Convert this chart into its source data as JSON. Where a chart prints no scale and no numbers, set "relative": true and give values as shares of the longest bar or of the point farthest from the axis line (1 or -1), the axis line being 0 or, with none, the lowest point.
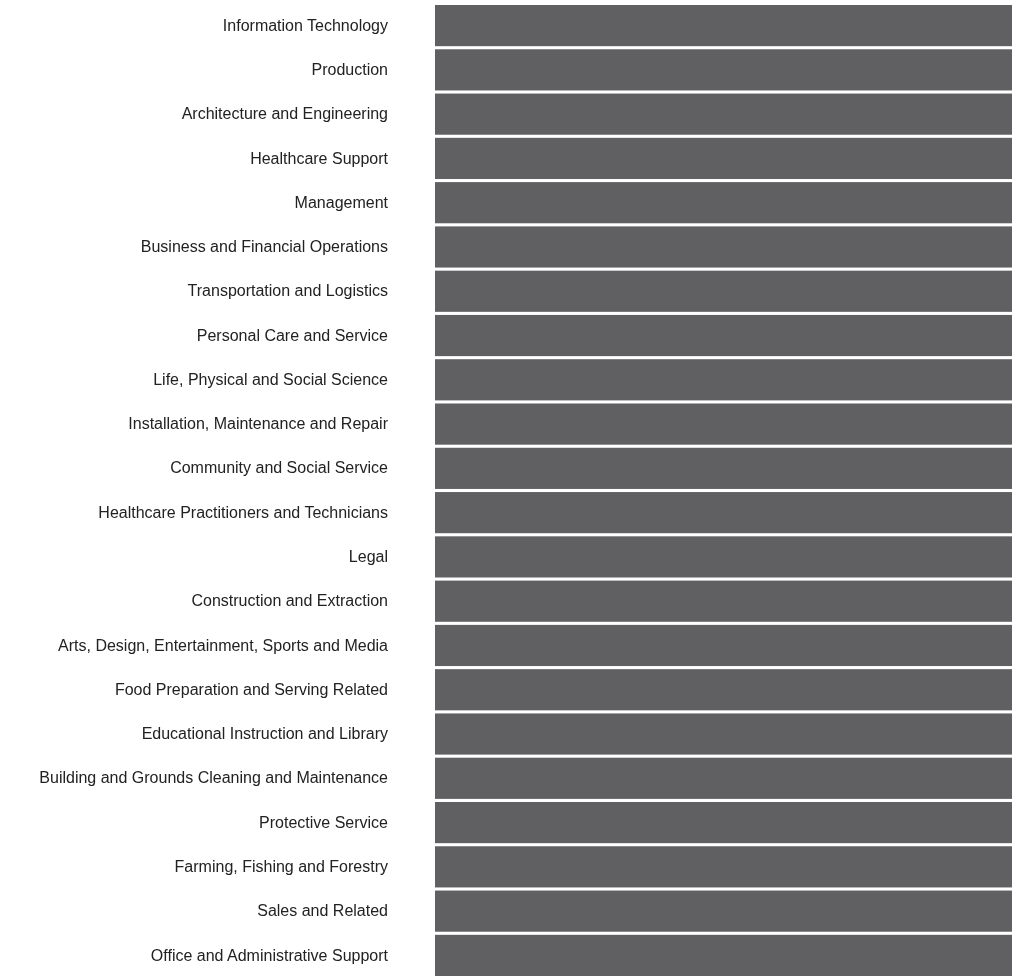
{
  "chart_data": {
    "type": "bar",
    "orientation": "horizontal",
    "relative": true,
    "categories": [
      "Information Technology",
      "Production",
      "Architecture and Engineering",
      "Healthcare Support",
      "Management",
      "Business and Financial Operations",
      "Transportation and Logistics",
      "Personal Care and Service",
      "Life, Physical and Social Science",
      "Installation, Maintenance and Repair",
      "Community and Social Service",
      "Healthcare Practitioners and Technicians",
      "Legal",
      "Construction and Extraction",
      "Arts, Design, Entertainment, Sports and Media",
      "Food Preparation and Serving Related",
      "Educational Instruction and Library",
      "Building and Grounds Cleaning and Maintenance",
      "Protective Service",
      "Farming, Fishing and Forestry",
      "Sales and Related",
      "Office and Administrative Support"
    ],
    "values": [
      1,
      1,
      1,
      1,
      1,
      1,
      1,
      1,
      1,
      1,
      1,
      1,
      1,
      1,
      1,
      1,
      1,
      1,
      1,
      1,
      1,
      1
    ],
    "color": "#606063"
  }
}
